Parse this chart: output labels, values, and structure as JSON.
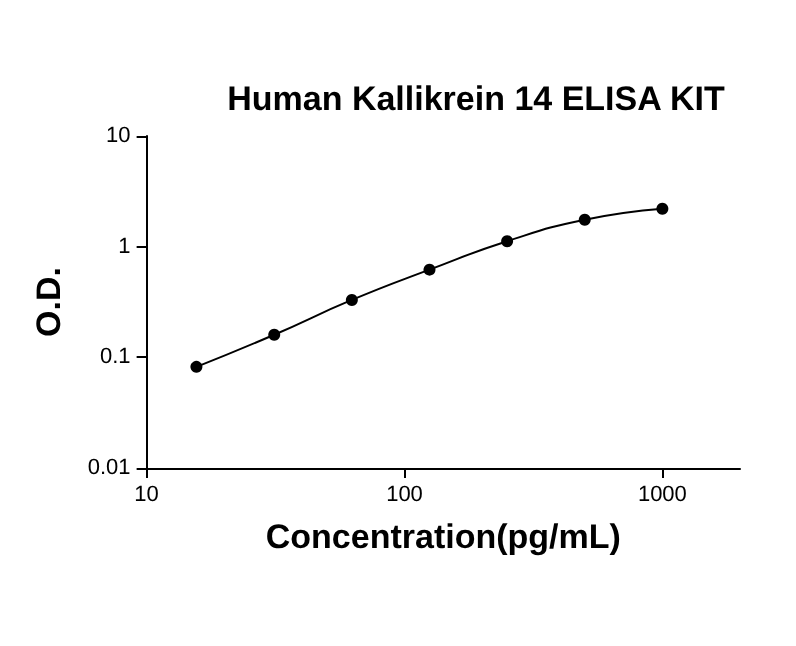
{
  "chart_data": {
    "type": "line",
    "title": "Human Kallikrein 14 ELISA KIT",
    "xlabel": "Concentration(pg/mL)",
    "ylabel": "O.D.",
    "x": [
      15.6,
      31.25,
      62.5,
      125,
      250,
      500,
      1000
    ],
    "series": [
      {
        "color": "#000000",
        "values": [
          0.082,
          0.16,
          0.33,
          0.62,
          1.12,
          1.75,
          2.2
        ]
      }
    ],
    "log": "xy",
    "xlim": [
      10,
      2000
    ],
    "ylim": [
      0.01,
      10
    ],
    "xticks": [
      10,
      100,
      1000
    ],
    "yticks": [
      0.01,
      0.1,
      1,
      10
    ],
    "grid": false,
    "marker": "circle",
    "line_style": "solid"
  }
}
